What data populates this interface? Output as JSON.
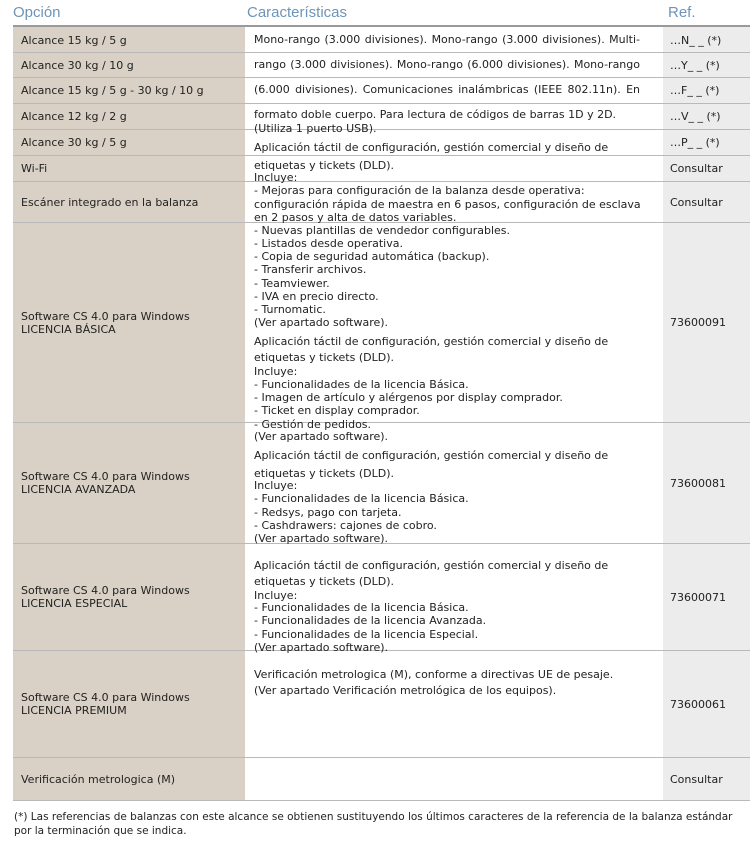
{
  "header": {
    "option": "Opción",
    "characteristics": "Características",
    "ref": "Ref."
  },
  "rows": [
    {
      "option": [
        "Alcance 15 kg / 5 g"
      ],
      "ref": "…N_ _ (*)"
    },
    {
      "option": [
        "Alcance 30 kg / 10 g"
      ],
      "ref": "…Y_ _ (*)"
    },
    {
      "option": [
        "Alcance 15 kg / 5 g - 30 kg / 10 g"
      ],
      "ref": "…F_ _ (*)"
    },
    {
      "option": [
        "Alcance 12 kg / 2 g"
      ],
      "ref": "…V_ _ (*)"
    },
    {
      "option": [
        "Alcance 30 kg / 5 g"
      ],
      "ref": "…P_ _ (*)"
    },
    {
      "option": [
        "Wi-Fi"
      ],
      "ref": "Consultar"
    },
    {
      "option": [
        "Escáner integrado en la balanza"
      ],
      "ref": "Consultar"
    },
    {
      "option": [
        "Software CS 4.0 para Windows",
        "LICENCIA BÁSICA"
      ],
      "ref": "73600091"
    },
    {
      "option": [
        "Software CS 4.0 para Windows",
        "LICENCIA AVANZADA"
      ],
      "ref": "73600081"
    },
    {
      "option": [
        "Software CS 4.0 para Windows",
        "LICENCIA ESPECIAL"
      ],
      "ref": "73600071"
    },
    {
      "option": [
        "Software CS 4.0 para Windows",
        "LICENCIA PREMIUM"
      ],
      "ref": "73600061"
    },
    {
      "option": [
        "Verificación metrologica (M)"
      ],
      "ref": "Consultar"
    }
  ],
  "characteristics_lines": [
    "Mono-rango (3.000 divisiones). Mono-rango (3.000 divisiones). Multi-",
    "rango (3.000 divisiones). Mono-rango (6.000 divisiones). Mono-rango",
    "(6.000 divisiones). Comunicaciones inalámbricas (IEEE 802.11n). En",
    "formato doble cuerpo. Para lectura de códigos de barras 1D y 2D.",
    "(Utiliza 1 puerto USB).",
    "Aplicación táctil de configuración, gestión comercial y diseño de",
    "etiquetas y tickets (DLD).",
    "Incluye:",
    "- Mejoras para configuración de la balanza desde operativa:",
    "configuración rápida de maestra en 6 pasos, configuración de esclava",
    "en 2 pasos y alta de datos variables.",
    "- Nuevas plantillas de vendedor configurables.",
    "- Listados desde operativa.",
    "- Copia de seguridad automática (backup).",
    "- Transferir archivos.",
    "- Teamviewer.",
    "- IVA en precio directo.",
    "- Turnomatic.",
    "(Ver apartado software).",
    "Aplicación táctil de configuración, gestión comercial y diseño de",
    "etiquetas y tickets (DLD).",
    "Incluye:",
    "- Funcionalidades de la licencia Básica.",
    "- Imagen de artículo y alérgenos por display comprador.",
    "- Ticket en display comprador.",
    "- Gestión de pedidos.",
    "(Ver apartado software).",
    "Aplicación táctil de configuración, gestión comercial y diseño de",
    "etiquetas y tickets (DLD).",
    "Incluye:",
    "- Funcionalidades de la licencia Básica.",
    "- Redsys, pago con tarjeta.",
    "- Cashdrawers: cajones de cobro.",
    "(Ver apartado software).",
    "Aplicación táctil de configuración, gestión comercial y diseño de",
    "etiquetas y tickets (DLD).",
    "Incluye:",
    "- Funcionalidades de la licencia Básica.",
    "- Funcionalidades de la licencia Avanzada.",
    "- Funcionalidades de la licencia Especial.",
    "(Ver apartado software).",
    "Verificación metrologica (M), conforme a directivas UE de pesaje.",
    "(Ver apartado Verificación metrológica de los equipos)."
  ],
  "footnote": "(*) Las referencias de balanzas con este alcance se obtienen sustituyendo los últimos caracteres de la referencia de la balanza estándar por la terminación que se indica."
}
